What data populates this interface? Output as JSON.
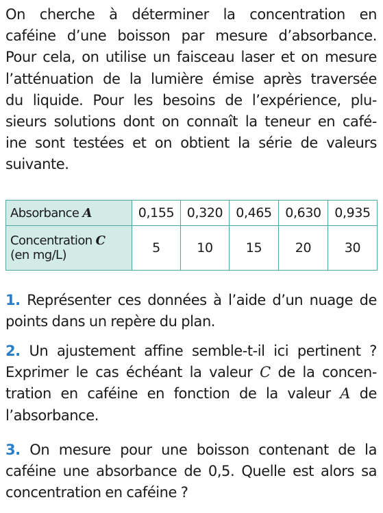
{
  "intro": {
    "lines": [
      "On cherche à déterminer la concentration en",
      "caféine d’une boisson par mesure d’absorbance.",
      "Pour cela, on utilise un faisceau laser et on mesure",
      "l’atténuation de la lumière émise après traversée",
      "du liquide. Pour les besoins de l’expérience, plu-",
      "sieurs solutions dont on connaît la teneur en café-",
      "ine sont testées et on obtient la série de valeurs",
      "suivante."
    ]
  },
  "table": {
    "row1_label": "Absorbance",
    "row1_var": "A",
    "row2_label_line1": "Concentration",
    "row2_var": "C",
    "row2_label_line2": "(en mg/L)",
    "absorbance": [
      "0,155",
      "0,320",
      "0,465",
      "0,630",
      "0,935"
    ],
    "concentration": [
      "5",
      "10",
      "15",
      "20",
      "30"
    ]
  },
  "questions": {
    "q1": {
      "number": "1.",
      "lines": [
        "Représenter ces données à l’aide d’un nuage de",
        "points dans un repère du plan."
      ]
    },
    "q2": {
      "number": "2.",
      "line1": "Un ajustement affine semble-t-il ici pertinent ?",
      "line2_a": "Exprimer le cas échéant la valeur ",
      "line2_var": "C",
      "line2_b": " de la concen-",
      "line3_a": "tration en caféine en fonction de la valeur ",
      "line3_var": "A",
      "line3_b": " de",
      "line4": "l’absorbance."
    },
    "q3": {
      "number": "3.",
      "lines": [
        "On mesure pour une boisson contenant de la",
        "caféine une absorbance de 0,5. Quelle est alors sa",
        "concentration en caféine ?"
      ]
    }
  },
  "colors": {
    "question_number": "#2a7fc8",
    "table_border": "#4aa8a0",
    "table_header_bg": "#d2ebe6"
  }
}
